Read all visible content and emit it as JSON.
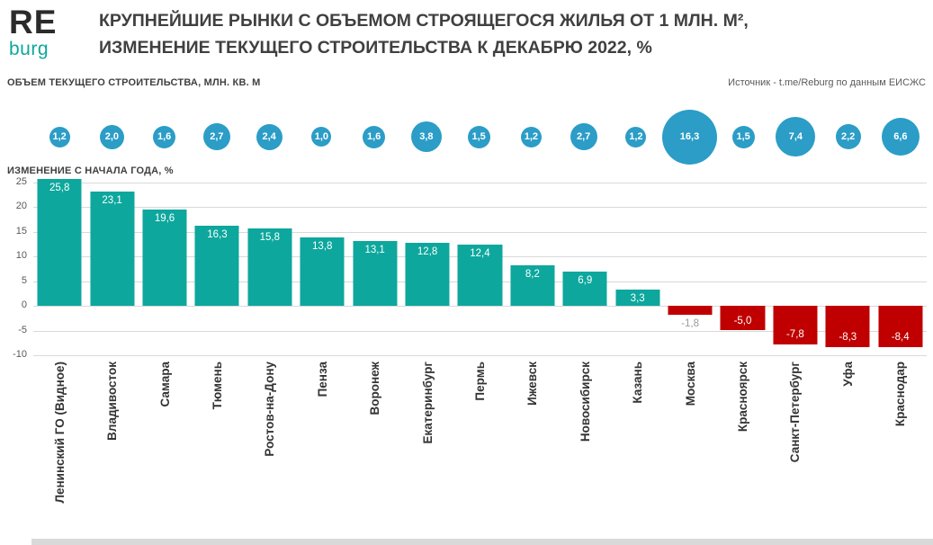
{
  "logo": {
    "re": "RE",
    "burg": "burg"
  },
  "header": {
    "title_line1": "КРУПНЕЙШИЕ РЫНКИ С ОБЪЕМОМ СТРОЯЩЕГОСЯ ЖИЛЬЯ ОТ 1 МЛН. М²,",
    "title_line2": "ИЗМЕНЕНИЕ ТЕКУЩЕГО СТРОИТЕЛЬСТВА  К ДЕКАБРЮ 2022, %"
  },
  "labels": {
    "volume": "ОБЪЕМ ТЕКУЩЕГО СТРОИТЕЛЬСТВА, МЛН. КВ. М",
    "source": "Источник - t.me/Reburg по данным ЕИСЖС",
    "change": "ИЗМЕНЕНИЕ С НАЧАЛА ГОДА, %"
  },
  "chart_data": {
    "type": "bar",
    "title": "Крупнейшие рынки с объемом строящегося жилья от 1 млн. м², изменение текущего строительства к декабрю 2022, %",
    "categories": [
      "Ленинский ГО (Видное)",
      "Владивосток",
      "Самара",
      "Тюмень",
      "Ростов-на-Дону",
      "Пенза",
      "Воронеж",
      "Екатеринбург",
      "Пермь",
      "Ижевск",
      "Новосибирск",
      "Казань",
      "Москва",
      "Красноярск",
      "Санкт-Петербург",
      "Уфа",
      "Краснодар"
    ],
    "series": [
      {
        "name": "Объем текущего строительства, млн. кв. м",
        "values": [
          1.2,
          2.0,
          1.6,
          2.7,
          2.4,
          1.0,
          1.6,
          3.8,
          1.5,
          1.2,
          2.7,
          1.2,
          16.3,
          1.5,
          7.4,
          2.2,
          6.6
        ],
        "display": [
          "1,2",
          "2,0",
          "1,6",
          "2,7",
          "2,4",
          "1,0",
          "1,6",
          "3,8",
          "1,5",
          "1,2",
          "2,7",
          "1,2",
          "16,3",
          "1,5",
          "7,4",
          "2,2",
          "6,6"
        ]
      },
      {
        "name": "Изменение с начала года, %",
        "values": [
          25.8,
          23.1,
          19.6,
          16.3,
          15.8,
          13.8,
          13.1,
          12.8,
          12.4,
          8.2,
          6.9,
          3.3,
          -1.8,
          -5.0,
          -7.8,
          -8.3,
          -8.4
        ],
        "display": [
          "25,8",
          "23,1",
          "19,6",
          "16,3",
          "15,8",
          "13,8",
          "13,1",
          "12,8",
          "12,4",
          "8,2",
          "6,9",
          "3,3",
          "-1,8",
          "-5,0",
          "-7,8",
          "-8,3",
          "-8,4"
        ]
      }
    ],
    "ylim": [
      -10,
      25
    ],
    "yticks": [
      25,
      20,
      15,
      10,
      5,
      0,
      -5,
      -10
    ],
    "grid": "horizontal",
    "legend": "none",
    "colors": {
      "positive": "#0da79d",
      "negative": "#c00000",
      "bubble": "#2b9dc7",
      "outside_label": "#9b9b9b"
    }
  }
}
